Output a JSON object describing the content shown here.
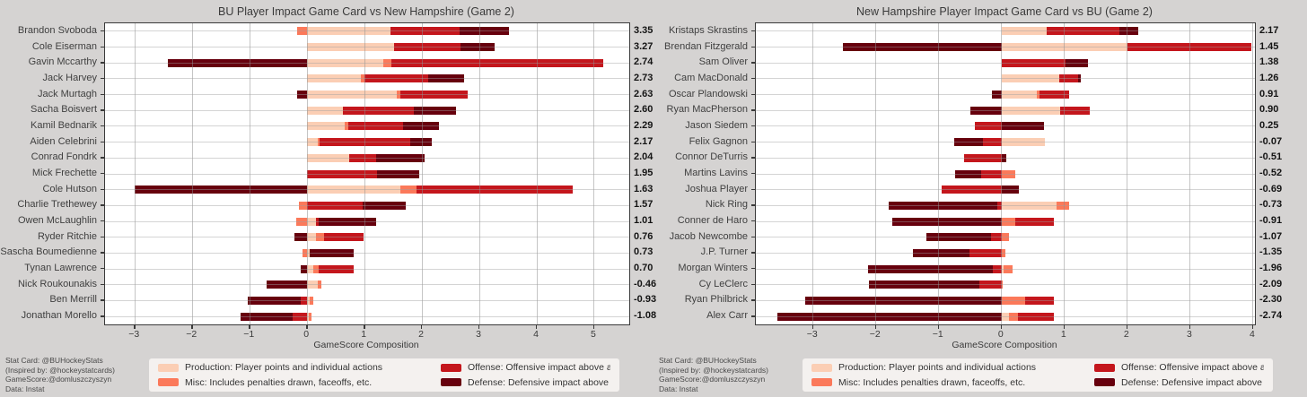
{
  "page": {
    "background": "#d5d3d2"
  },
  "colors": {
    "production": "#fbceb4",
    "misc": "#fb795a",
    "offense": "#c4161c",
    "defense": "#67000d",
    "plot_background": "#ffffff",
    "legend_background": "#f4f1ef",
    "grid": "#8c8c8c",
    "spine": "#3a3a3a",
    "text": "#3a3a3a"
  },
  "axis": {
    "xlabel": "GameScore Composition"
  },
  "credits": {
    "lines": [
      "Stat Card: @BUHockeyStats",
      "(Inspired by: @hockeystatcards)",
      "GameScore:@domluszczyszyn",
      "Data: Instat"
    ]
  },
  "legend": {
    "items": [
      {
        "key": "production",
        "label": "Production: Player points and individual actions"
      },
      {
        "key": "misc",
        "label": "Misc: Includes penalties drawn, faceoffs, etc."
      },
      {
        "key": "offense",
        "label": "Offense: Offensive impact above average"
      },
      {
        "key": "defense",
        "label": "Defense: Defensive impact above average"
      }
    ]
  },
  "chart_data": [
    {
      "type": "bar",
      "title": "BU Player Impact Game Card vs New Hampshire (Game 2)",
      "xlabel": "GameScore Composition",
      "xlim": [
        -3.52,
        5.61
      ],
      "xticks": [
        -3,
        -2,
        -1,
        0,
        1,
        2,
        3,
        4,
        5
      ],
      "grid": true,
      "legend_position": "bottom",
      "series_order": [
        "production",
        "misc",
        "offense",
        "defense"
      ],
      "players": [
        {
          "name": "Brandon Svoboda",
          "total": "3.35",
          "production": 1.45,
          "misc": -0.17,
          "offense": 1.2,
          "defense": 0.87
        },
        {
          "name": "Cole Eiserman",
          "total": "3.27",
          "production": 1.51,
          "misc": 0,
          "offense": 1.16,
          "defense": 0.6
        },
        {
          "name": "Gavin Mccarthy",
          "total": "2.74",
          "production": 1.33,
          "misc": 0.14,
          "offense": 3.69,
          "defense": -2.42
        },
        {
          "name": "Jack Harvey",
          "total": "2.73",
          "production": 0.94,
          "misc": 0.06,
          "offense": 1.11,
          "defense": 0.62
        },
        {
          "name": "Jack Murtagh",
          "total": "2.63",
          "production": 1.56,
          "misc": 0.07,
          "offense": 1.17,
          "defense": -0.17
        },
        {
          "name": "Sacha Boisvert",
          "total": "2.60",
          "production": 0.63,
          "misc": 0,
          "offense": 1.23,
          "defense": 0.74
        },
        {
          "name": "Kamil Bednarik",
          "total": "2.29",
          "production": 0.66,
          "misc": 0.06,
          "offense": 0.95,
          "defense": 0.62
        },
        {
          "name": "Aiden Celebrini",
          "total": "2.17",
          "production": 0.19,
          "misc": 0.02,
          "offense": 1.59,
          "defense": 0.37
        },
        {
          "name": "Conrad Fondrk",
          "total": "2.04",
          "production": 0.73,
          "misc": 0,
          "offense": 0.47,
          "defense": 0.84
        },
        {
          "name": "Mick Frechette",
          "total": "1.95",
          "production": 0,
          "misc": 0,
          "offense": 1.22,
          "defense": 0.73
        },
        {
          "name": "Cole Hutson",
          "total": "1.63",
          "production": 1.62,
          "misc": 0.28,
          "offense": 2.73,
          "defense": -3.0
        },
        {
          "name": "Charlie Trethewey",
          "total": "1.57",
          "production": 0,
          "misc": -0.14,
          "offense": 0.96,
          "defense": 0.75
        },
        {
          "name": "Owen McLaughlin",
          "total": "1.01",
          "production": 0.15,
          "misc": -0.19,
          "offense": 0.05,
          "defense": 1.0
        },
        {
          "name": "Ryder Ritchie",
          "total": "0.76",
          "production": 0.15,
          "misc": 0.15,
          "offense": 0.68,
          "defense": -0.22
        },
        {
          "name": "Sascha Boumedienne",
          "total": "0.73",
          "production": 0.04,
          "misc": -0.08,
          "offense": 0,
          "defense": 0.77
        },
        {
          "name": "Tynan Lawrence",
          "total": "0.70",
          "production": 0.1,
          "misc": 0.1,
          "offense": 0.61,
          "defense": -0.11
        },
        {
          "name": "Nick Roukounakis",
          "total": "-0.46",
          "production": 0.18,
          "misc": 0.07,
          "offense": 0,
          "defense": -0.71
        },
        {
          "name": "Ben Merrill",
          "total": "-0.93",
          "production": 0.05,
          "misc": 0.05,
          "offense": -0.11,
          "defense": -0.92
        },
        {
          "name": "Jonathan Morello",
          "total": "-1.08",
          "production": 0.03,
          "misc": 0.05,
          "offense": -0.25,
          "defense": -0.91
        }
      ]
    },
    {
      "type": "bar",
      "title": "New Hampshire Player Impact Game Card vs BU (Game 2)",
      "xlabel": "GameScore Composition",
      "xlim": [
        -3.91,
        4.03
      ],
      "xticks": [
        -3,
        -2,
        -1,
        0,
        1,
        2,
        3,
        4
      ],
      "grid": true,
      "legend_position": "bottom",
      "series_order": [
        "production",
        "misc",
        "offense",
        "defense"
      ],
      "players": [
        {
          "name": "Kristaps Skrastins",
          "total": "2.17",
          "production": 0.72,
          "misc": 0,
          "offense": 1.16,
          "defense": 0.29
        },
        {
          "name": "Brendan Fitzgerald",
          "total": "1.45",
          "production": 2.0,
          "misc": 0,
          "offense": 1.97,
          "defense": -2.52
        },
        {
          "name": "Sam Oliver",
          "total": "1.38",
          "production": 0,
          "misc": 0,
          "offense": 1.01,
          "defense": 0.37
        },
        {
          "name": "Cam MacDonald",
          "total": "1.26",
          "production": 0.92,
          "misc": 0,
          "offense": 0.29,
          "defense": 0.05
        },
        {
          "name": "Oscar Plandowski",
          "total": "0.91",
          "production": 0.56,
          "misc": 0.04,
          "offense": 0.47,
          "defense": -0.16
        },
        {
          "name": "Ryan MacPherson",
          "total": "0.90",
          "production": 0.93,
          "misc": 0,
          "offense": 0.47,
          "defense": -0.5
        },
        {
          "name": "Jason Siedem",
          "total": "0.25",
          "production": 0,
          "misc": 0,
          "offense": -0.43,
          "defense": 0.68
        },
        {
          "name": "Felix Gagnon",
          "total": "-0.07",
          "production": 0.69,
          "misc": 0,
          "offense": -0.3,
          "defense": -0.46
        },
        {
          "name": "Connor DeTurris",
          "total": "-0.51",
          "production": 0,
          "misc": 0,
          "offense": -0.59,
          "defense": 0.08
        },
        {
          "name": "Martins Lavins",
          "total": "-0.52",
          "production": 0,
          "misc": 0.22,
          "offense": -0.32,
          "defense": -0.42
        },
        {
          "name": "Joshua Player",
          "total": "-0.69",
          "production": 0,
          "misc": 0,
          "offense": -0.96,
          "defense": 0.27
        },
        {
          "name": "Nick Ring",
          "total": "-0.73",
          "production": 0.88,
          "misc": 0.19,
          "offense": -0.07,
          "defense": -1.73
        },
        {
          "name": "Conner de Haro",
          "total": "-0.91",
          "production": 0,
          "misc": 0.21,
          "offense": 0.62,
          "defense": -1.74
        },
        {
          "name": "Jacob Newcombe",
          "total": "-1.07",
          "production": 0,
          "misc": 0.12,
          "offense": -0.17,
          "defense": -1.02
        },
        {
          "name": "J.P. Turner",
          "total": "-1.35",
          "production": 0,
          "misc": 0.06,
          "offense": -0.51,
          "defense": -0.9
        },
        {
          "name": "Morgan Winters",
          "total": "-1.96",
          "production": 0.03,
          "misc": 0.14,
          "offense": -0.14,
          "defense": -1.99
        },
        {
          "name": "Cy LeClerc",
          "total": "-2.09",
          "production": 0,
          "misc": 0.02,
          "offense": -0.36,
          "defense": -1.75
        },
        {
          "name": "Ryan Philbrick",
          "total": "-2.30",
          "production": 0,
          "misc": 0.38,
          "offense": 0.45,
          "defense": -3.13
        },
        {
          "name": "Alex Carr",
          "total": "-2.74",
          "production": 0.12,
          "misc": 0.14,
          "offense": 0.57,
          "defense": -3.57
        }
      ]
    }
  ]
}
